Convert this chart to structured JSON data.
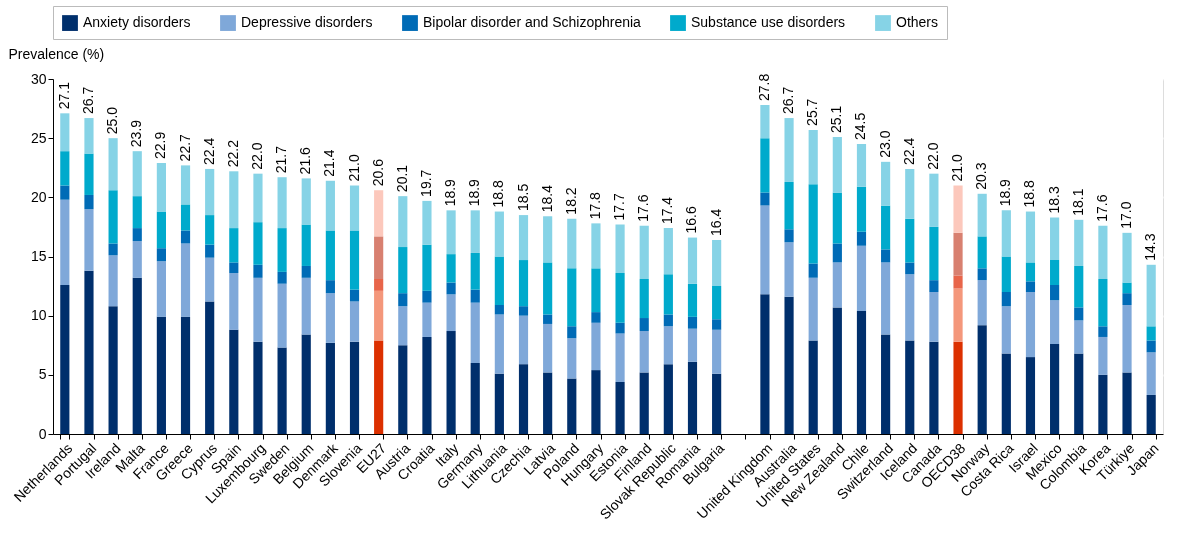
{
  "chart_data": {
    "type": "bar",
    "stacked": true,
    "ylabel": "Prevalence (%)",
    "ylim": [
      0,
      30
    ],
    "yticks": [
      0,
      5,
      10,
      15,
      20,
      25,
      30
    ],
    "grid": true,
    "legend": "top",
    "categories": [
      "Netherlands",
      "Portugal",
      "Ireland",
      "Malta",
      "France",
      "Greece",
      "Cyprus",
      "Spain",
      "Luxembourg",
      "Sweden",
      "Belgium",
      "Denmark",
      "Slovenia",
      "EU27",
      "Austria",
      "Croatia",
      "Italy",
      "Germany",
      "Lithuania",
      "Czechia",
      "Latvia",
      "Poland",
      "Hungary",
      "Estonia",
      "Finland",
      "Slovak Republic",
      "Romania",
      "Bulgaria",
      null,
      "United Kingdom",
      "Australia",
      "United States",
      "New Zealand",
      "Chile",
      "Switzerland",
      "Iceland",
      "Canada",
      "OECD38",
      "Norway",
      "Costa Rica",
      "Israel",
      "Mexico",
      "Colombia",
      "Korea",
      "Türkiye",
      "Japan"
    ],
    "series": [
      {
        "name": "Anxiety disorders",
        "color": "#002f6c",
        "values": [
          12.6,
          13.8,
          10.8,
          13.2,
          9.9,
          9.9,
          11.2,
          8.8,
          7.8,
          7.3,
          8.4,
          7.7,
          7.8,
          7.9,
          7.5,
          8.2,
          8.7,
          6.0,
          5.1,
          5.9,
          5.2,
          4.7,
          5.4,
          4.4,
          5.2,
          5.9,
          6.1,
          5.1,
          null,
          11.8,
          11.6,
          7.9,
          10.7,
          10.4,
          8.4,
          7.9,
          7.8,
          7.8,
          9.2,
          6.8,
          6.5,
          7.6,
          6.8,
          5.0,
          5.2,
          3.3
        ],
        "colors": [
          "#002f6c",
          "#002f6c",
          "#002f6c",
          "#002f6c",
          "#002f6c",
          "#002f6c",
          "#002f6c",
          "#002f6c",
          "#002f6c",
          "#002f6c",
          "#002f6c",
          "#002f6c",
          "#002f6c",
          "#dc3000",
          "#002f6c",
          "#002f6c",
          "#002f6c",
          "#002f6c",
          "#002f6c",
          "#002f6c",
          "#002f6c",
          "#002f6c",
          "#002f6c",
          "#002f6c",
          "#002f6c",
          "#002f6c",
          "#002f6c",
          "#002f6c",
          "#002f6c",
          "#002f6c",
          "#002f6c",
          "#002f6c",
          "#002f6c",
          "#002f6c",
          "#002f6c",
          "#002f6c",
          "#002f6c",
          "#dc3000",
          "#002f6c",
          "#002f6c",
          "#002f6c",
          "#002f6c",
          "#002f6c",
          "#002f6c",
          "#002f6c",
          "#002f6c"
        ]
      },
      {
        "name": "Depressive disorders",
        "color": "#7fa8d9",
        "values": [
          7.2,
          5.2,
          4.3,
          3.1,
          4.7,
          6.2,
          3.7,
          4.8,
          5.4,
          5.4,
          4.8,
          4.2,
          3.4,
          4.2,
          3.3,
          2.9,
          3.1,
          5.1,
          5.0,
          4.1,
          4.1,
          3.4,
          4.0,
          4.1,
          3.5,
          3.2,
          2.8,
          3.7,
          null,
          7.5,
          4.6,
          5.3,
          3.8,
          5.5,
          6.1,
          5.6,
          4.2,
          4.5,
          3.8,
          4.0,
          5.5,
          3.7,
          2.8,
          3.2,
          5.7,
          3.6
        ],
        "colors": [
          "#7fa8d9",
          "#7fa8d9",
          "#7fa8d9",
          "#7fa8d9",
          "#7fa8d9",
          "#7fa8d9",
          "#7fa8d9",
          "#7fa8d9",
          "#7fa8d9",
          "#7fa8d9",
          "#7fa8d9",
          "#7fa8d9",
          "#7fa8d9",
          "#f4977b",
          "#7fa8d9",
          "#7fa8d9",
          "#7fa8d9",
          "#7fa8d9",
          "#7fa8d9",
          "#7fa8d9",
          "#7fa8d9",
          "#7fa8d9",
          "#7fa8d9",
          "#7fa8d9",
          "#7fa8d9",
          "#7fa8d9",
          "#7fa8d9",
          "#7fa8d9",
          "#7fa8d9",
          "#7fa8d9",
          "#7fa8d9",
          "#7fa8d9",
          "#7fa8d9",
          "#7fa8d9",
          "#7fa8d9",
          "#7fa8d9",
          "#7fa8d9",
          "#f4977b",
          "#7fa8d9",
          "#7fa8d9",
          "#7fa8d9",
          "#7fa8d9",
          "#7fa8d9",
          "#7fa8d9",
          "#7fa8d9",
          "#7fa8d9"
        ]
      },
      {
        "name": "Bipolar disorder and Schizophrenia",
        "color": "#006bb6",
        "values": [
          1.2,
          1.2,
          1.0,
          1.1,
          1.1,
          1.1,
          1.1,
          0.9,
          1.1,
          1.0,
          1.0,
          1.1,
          1.0,
          1.0,
          1.1,
          1.0,
          1.0,
          1.1,
          0.8,
          0.8,
          0.8,
          1.0,
          0.9,
          0.9,
          1.1,
          1.0,
          1.0,
          0.9,
          null,
          1.1,
          1.1,
          1.2,
          1.6,
          1.2,
          1.1,
          1.0,
          1.0,
          1.1,
          1.0,
          1.2,
          0.9,
          1.3,
          1.1,
          0.9,
          1.0,
          1.0
        ],
        "colors": [
          "#006bb6",
          "#006bb6",
          "#006bb6",
          "#006bb6",
          "#006bb6",
          "#006bb6",
          "#006bb6",
          "#006bb6",
          "#006bb6",
          "#006bb6",
          "#006bb6",
          "#006bb6",
          "#006bb6",
          "#e8654a",
          "#006bb6",
          "#006bb6",
          "#006bb6",
          "#006bb6",
          "#006bb6",
          "#006bb6",
          "#006bb6",
          "#006bb6",
          "#006bb6",
          "#006bb6",
          "#006bb6",
          "#006bb6",
          "#006bb6",
          "#006bb6",
          "#006bb6",
          "#006bb6",
          "#006bb6",
          "#006bb6",
          "#006bb6",
          "#006bb6",
          "#006bb6",
          "#006bb6",
          "#006bb6",
          "#e8654a",
          "#006bb6",
          "#006bb6",
          "#006bb6",
          "#006bb6",
          "#006bb6",
          "#006bb6",
          "#006bb6",
          "#006bb6"
        ]
      },
      {
        "name": "Substance use disorders",
        "color": "#00aacc",
        "values": [
          2.9,
          3.5,
          4.5,
          2.7,
          3.1,
          2.2,
          2.5,
          2.9,
          3.6,
          3.7,
          3.5,
          4.2,
          5.0,
          3.6,
          3.9,
          3.9,
          2.4,
          3.1,
          4.1,
          3.9,
          4.4,
          4.9,
          3.7,
          4.2,
          3.3,
          3.4,
          2.8,
          2.8,
          null,
          4.6,
          4.0,
          6.7,
          4.3,
          3.8,
          3.7,
          3.7,
          4.5,
          3.6,
          2.7,
          3.0,
          1.6,
          2.1,
          3.5,
          4.0,
          0.9,
          1.2
        ],
        "colors": [
          "#00aacc",
          "#00aacc",
          "#00aacc",
          "#00aacc",
          "#00aacc",
          "#00aacc",
          "#00aacc",
          "#00aacc",
          "#00aacc",
          "#00aacc",
          "#00aacc",
          "#00aacc",
          "#00aacc",
          "#d88070",
          "#00aacc",
          "#00aacc",
          "#00aacc",
          "#00aacc",
          "#00aacc",
          "#00aacc",
          "#00aacc",
          "#00aacc",
          "#00aacc",
          "#00aacc",
          "#00aacc",
          "#00aacc",
          "#00aacc",
          "#00aacc",
          "#00aacc",
          "#00aacc",
          "#00aacc",
          "#00aacc",
          "#00aacc",
          "#00aacc",
          "#00aacc",
          "#00aacc",
          "#00aacc",
          "#d88070",
          "#00aacc",
          "#00aacc",
          "#00aacc",
          "#00aacc",
          "#00aacc",
          "#00aacc",
          "#00aacc",
          "#00aacc"
        ]
      },
      {
        "name": "Others",
        "color": "#86d3e6",
        "values": [
          3.2,
          3.0,
          4.4,
          3.8,
          4.1,
          3.3,
          3.9,
          4.8,
          4.1,
          4.3,
          3.9,
          4.2,
          3.8,
          3.9,
          4.3,
          3.7,
          3.7,
          3.6,
          3.8,
          3.8,
          3.9,
          4.2,
          3.8,
          4.1,
          4.5,
          3.9,
          3.9,
          3.9,
          null,
          2.8,
          5.4,
          4.6,
          4.7,
          3.6,
          3.7,
          4.2,
          4.5,
          4.0,
          3.6,
          3.9,
          4.3,
          3.6,
          3.9,
          4.5,
          4.2,
          5.2
        ],
        "colors": [
          "#86d3e6",
          "#86d3e6",
          "#86d3e6",
          "#86d3e6",
          "#86d3e6",
          "#86d3e6",
          "#86d3e6",
          "#86d3e6",
          "#86d3e6",
          "#86d3e6",
          "#86d3e6",
          "#86d3e6",
          "#86d3e6",
          "#fcc8bc",
          "#86d3e6",
          "#86d3e6",
          "#86d3e6",
          "#86d3e6",
          "#86d3e6",
          "#86d3e6",
          "#86d3e6",
          "#86d3e6",
          "#86d3e6",
          "#86d3e6",
          "#86d3e6",
          "#86d3e6",
          "#86d3e6",
          "#86d3e6",
          "#86d3e6",
          "#86d3e6",
          "#86d3e6",
          "#86d3e6",
          "#86d3e6",
          "#86d3e6",
          "#86d3e6",
          "#86d3e6",
          "#86d3e6",
          "#fcc8bc",
          "#86d3e6",
          "#86d3e6",
          "#86d3e6",
          "#86d3e6",
          "#86d3e6",
          "#86d3e6",
          "#86d3e6",
          "#86d3e6"
        ]
      }
    ],
    "totals": [
      "27.1",
      "26.7",
      "25.0",
      "23.9",
      "22.9",
      "22.7",
      "22.4",
      "22.2",
      "22.0",
      "21.7",
      "21.6",
      "21.4",
      "21.0",
      "20.6",
      "20.1",
      "19.7",
      "18.9",
      "18.9",
      "18.8",
      "18.5",
      "18.4",
      "18.2",
      "17.8",
      "17.7",
      "17.6",
      "17.4",
      "16.6",
      "16.4",
      null,
      "27.8",
      "26.7",
      "25.7",
      "25.1",
      "24.5",
      "23.0",
      "22.4",
      "22.0",
      "21.0",
      "20.3",
      "18.9",
      "18.8",
      "18.3",
      "18.1",
      "17.6",
      "17.0",
      "14.3"
    ]
  }
}
